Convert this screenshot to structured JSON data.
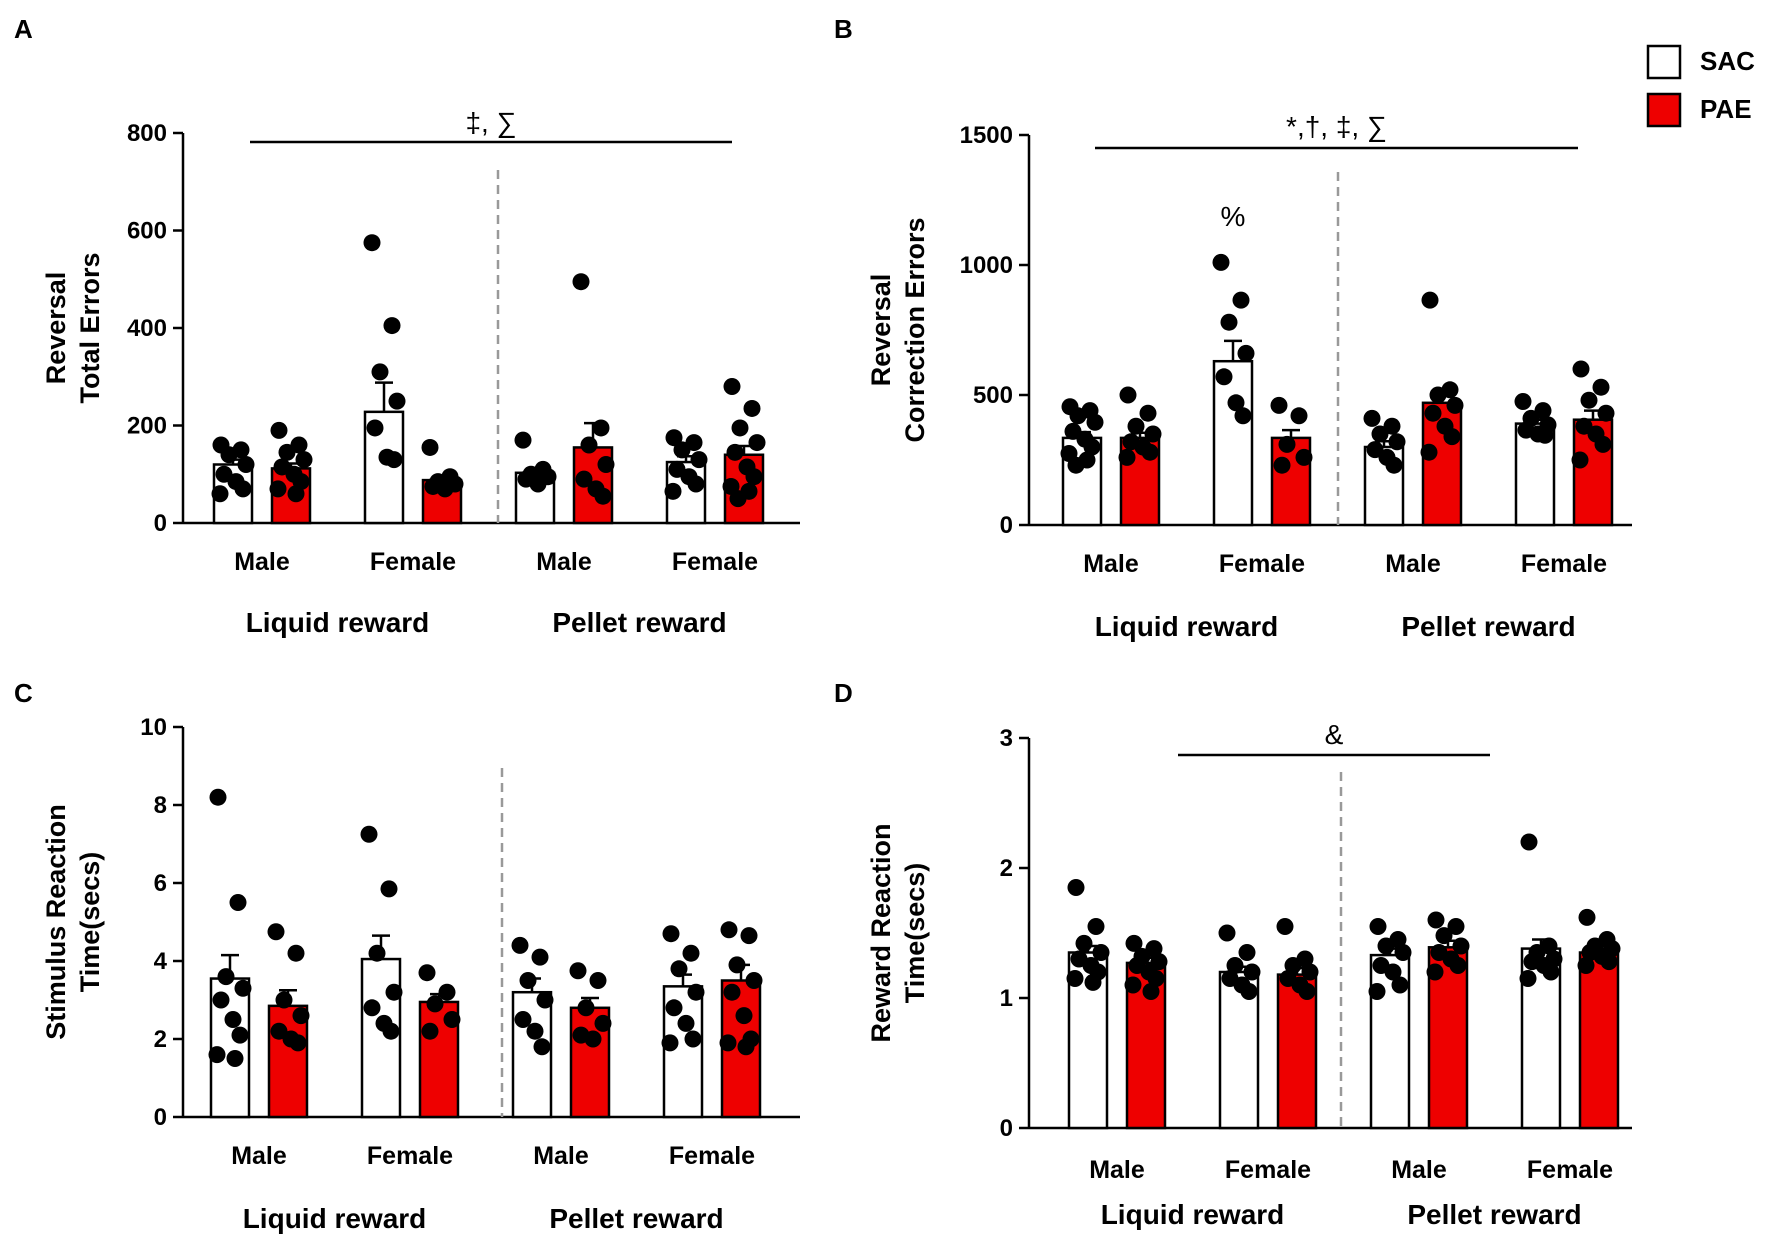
{
  "legend": [
    {
      "name": "SAC",
      "color": "#ffffff"
    },
    {
      "name": "PAE",
      "color": "#ee0000"
    }
  ],
  "chart_data": [
    {
      "panel": "A",
      "type": "bar",
      "ylabel": [
        "Reversal",
        "Total Errors"
      ],
      "ylim": [
        0,
        800
      ],
      "yticks": [
        0,
        200,
        400,
        600,
        800
      ],
      "group_labels": [
        "Liquid reward",
        "Pellet reward"
      ],
      "category_labels": [
        "Male",
        "Female",
        "Male",
        "Female"
      ],
      "series": [
        {
          "name": "SAC",
          "color": "#ffffff",
          "values": [
            120,
            228,
            103,
            125
          ],
          "sem": [
            10,
            60,
            8,
            12
          ],
          "points": [
            [
              160,
              150,
              140,
              120,
              100,
              85,
              70,
              60
            ],
            [
              575,
              405,
              310,
              250,
              195,
              135,
              130
            ],
            [
              170,
              110,
              100,
              95,
              90,
              80
            ],
            [
              175,
              165,
              150,
              130,
              110,
              95,
              80,
              65
            ]
          ]
        },
        {
          "name": "PAE",
          "color": "#ee0000",
          "values": [
            112,
            88,
            155,
            140
          ],
          "sem": [
            10,
            6,
            50,
            18
          ],
          "points": [
            [
              190,
              160,
              145,
              130,
              115,
              100,
              85,
              70,
              60
            ],
            [
              155,
              95,
              85,
              80,
              75,
              70
            ],
            [
              495,
              195,
              160,
              120,
              90,
              70,
              55
            ],
            [
              280,
              235,
              195,
              165,
              145,
              115,
              95,
              75,
              65,
              50
            ]
          ]
        }
      ],
      "annotation": {
        "text": "‡, ∑",
        "span": [
          0,
          3
        ]
      },
      "divider_after_category": 1
    },
    {
      "panel": "B",
      "type": "bar",
      "ylabel": [
        "Reversal",
        "Correction Errors"
      ],
      "ylim": [
        0,
        1500
      ],
      "yticks": [
        0,
        500,
        1000,
        1500
      ],
      "group_labels": [
        "Liquid reward",
        "Pellet reward"
      ],
      "category_labels": [
        "Male",
        "Female",
        "Male",
        "Female"
      ],
      "series": [
        {
          "name": "SAC",
          "color": "#ffffff",
          "values": [
            335,
            630,
            300,
            390
          ],
          "sem": [
            22,
            78,
            22,
            15
          ],
          "points": [
            [
              455,
              440,
              420,
              395,
              360,
              330,
              300,
              275,
              250,
              230
            ],
            [
              1010,
              865,
              780,
              660,
              570,
              470,
              420
            ],
            [
              410,
              380,
              350,
              320,
              290,
              260,
              230
            ],
            [
              475,
              440,
              410,
              385,
              365,
              350,
              345
            ]
          ]
        },
        {
          "name": "PAE",
          "color": "#ee0000",
          "values": [
            335,
            335,
            470,
            405
          ],
          "sem": [
            20,
            30,
            30,
            35
          ],
          "points": [
            [
              500,
              430,
              380,
              350,
              320,
              300,
              280,
              260
            ],
            [
              460,
              420,
              310,
              260,
              230
            ],
            [
              865,
              520,
              500,
              460,
              430,
              380,
              340,
              280
            ],
            [
              600,
              530,
              480,
              430,
              380,
              350,
              310,
              250
            ]
          ]
        }
      ],
      "annotation": {
        "text": "*,†, ‡, ∑",
        "span": [
          0,
          3
        ]
      },
      "extra_annotation": {
        "text": "%",
        "category": 1,
        "series": 0
      },
      "divider_after_category": 1
    },
    {
      "panel": "C",
      "type": "bar",
      "ylabel": [
        "Stimulus Reaction",
        "Time(secs)"
      ],
      "ylim": [
        0,
        10
      ],
      "yticks": [
        0,
        2,
        4,
        6,
        8,
        10
      ],
      "group_labels": [
        "Liquid reward",
        "Pellet reward"
      ],
      "category_labels": [
        "Male",
        "Female",
        "Male",
        "Female"
      ],
      "series": [
        {
          "name": "SAC",
          "color": "#ffffff",
          "values": [
            3.55,
            4.05,
            3.2,
            3.35
          ],
          "sem": [
            0.6,
            0.6,
            0.35,
            0.3
          ],
          "points": [
            [
              8.2,
              5.5,
              3.6,
              3.3,
              3.0,
              2.5,
              2.1,
              1.6,
              1.5
            ],
            [
              7.25,
              5.85,
              4.2,
              3.2,
              2.8,
              2.4,
              2.2
            ],
            [
              4.4,
              4.1,
              3.5,
              3.0,
              2.5,
              2.2,
              1.8
            ],
            [
              4.7,
              4.2,
              3.8,
              3.2,
              2.8,
              2.4,
              2.0,
              1.9
            ]
          ]
        },
        {
          "name": "PAE",
          "color": "#ee0000",
          "values": [
            2.85,
            2.95,
            2.8,
            3.5
          ],
          "sem": [
            0.4,
            0.2,
            0.25,
            0.4
          ],
          "points": [
            [
              4.75,
              4.2,
              3.0,
              2.6,
              2.2,
              2.0,
              1.9
            ],
            [
              3.7,
              3.2,
              2.9,
              2.5,
              2.2
            ],
            [
              3.75,
              3.5,
              2.8,
              2.4,
              2.1,
              2.0
            ],
            [
              4.8,
              4.65,
              3.9,
              3.5,
              3.2,
              2.6,
              2.0,
              1.9,
              1.8
            ]
          ]
        }
      ],
      "divider_after_category": 1
    },
    {
      "panel": "D",
      "type": "bar",
      "ylabel": [
        "Reward Reaction",
        "Time(secs)"
      ],
      "ylim": [
        0,
        3
      ],
      "yticks": [
        0,
        1,
        2,
        3
      ],
      "group_labels": [
        "Liquid reward",
        "Pellet reward"
      ],
      "category_labels": [
        "Male",
        "Female",
        "Male",
        "Female"
      ],
      "series": [
        {
          "name": "SAC",
          "color": "#ffffff",
          "values": [
            1.35,
            1.2,
            1.33,
            1.38
          ],
          "sem": [
            0.05,
            0.04,
            0.05,
            0.07
          ],
          "points": [
            [
              1.85,
              1.55,
              1.42,
              1.35,
              1.3,
              1.25,
              1.2,
              1.15,
              1.12
            ],
            [
              1.5,
              1.35,
              1.25,
              1.2,
              1.15,
              1.1,
              1.05
            ],
            [
              1.55,
              1.45,
              1.4,
              1.35,
              1.25,
              1.2,
              1.1,
              1.05
            ],
            [
              2.2,
              1.4,
              1.35,
              1.3,
              1.28,
              1.25,
              1.2,
              1.15
            ]
          ]
        },
        {
          "name": "PAE",
          "color": "#ee0000",
          "values": [
            1.27,
            1.18,
            1.39,
            1.35
          ],
          "sem": [
            0.04,
            0.05,
            0.05,
            0.03
          ],
          "points": [
            [
              1.42,
              1.38,
              1.32,
              1.28,
              1.25,
              1.2,
              1.15,
              1.1,
              1.05
            ],
            [
              1.55,
              1.3,
              1.25,
              1.2,
              1.15,
              1.1,
              1.05
            ],
            [
              1.6,
              1.55,
              1.48,
              1.4,
              1.35,
              1.3,
              1.25,
              1.2
            ],
            [
              1.62,
              1.45,
              1.4,
              1.38,
              1.35,
              1.32,
              1.28,
              1.25
            ]
          ]
        }
      ],
      "annotation": {
        "text": "&",
        "span": [
          1,
          2
        ]
      },
      "divider_after_category": 1
    }
  ]
}
